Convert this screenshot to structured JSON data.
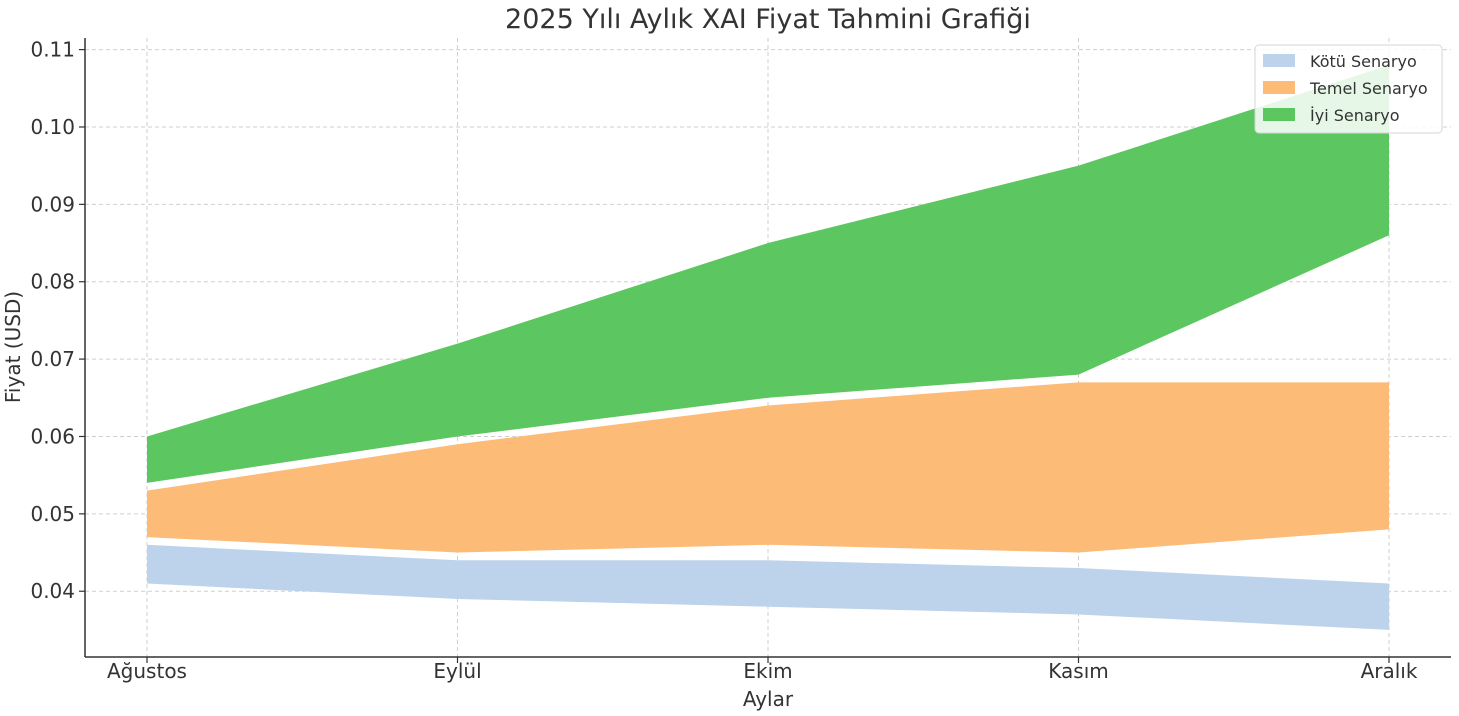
{
  "chart_data": {
    "type": "area",
    "title": "2025 Yılı Aylık XAI Fiyat Tahmini Grafiği",
    "xlabel": "Aylar",
    "ylabel": "Fiyat (USD)",
    "categories": [
      "Ağustos",
      "Eylül",
      "Ekim",
      "Kasım",
      "Aralık"
    ],
    "ylim": [
      0.0315,
      0.1115
    ],
    "yticks": [
      "0.04",
      "0.05",
      "0.06",
      "0.07",
      "0.08",
      "0.09",
      "0.10",
      "0.11"
    ],
    "grid": true,
    "legend_position": "top-right",
    "series": [
      {
        "name": "Kötü Senaryo",
        "color": "#bcd3eb",
        "low": [
          0.041,
          0.039,
          0.038,
          0.037,
          0.035
        ],
        "high": [
          0.046,
          0.044,
          0.044,
          0.043,
          0.041
        ]
      },
      {
        "name": "Temel Senaryo",
        "color": "#fdbb78",
        "low": [
          0.047,
          0.045,
          0.046,
          0.045,
          0.048
        ],
        "high": [
          0.053,
          0.059,
          0.064,
          0.067,
          0.067
        ]
      },
      {
        "name": "İyi Senaryo",
        "color": "#5cc660",
        "low": [
          0.054,
          0.06,
          0.065,
          0.068,
          0.086
        ],
        "high": [
          0.06,
          0.072,
          0.085,
          0.095,
          0.108
        ]
      }
    ]
  }
}
